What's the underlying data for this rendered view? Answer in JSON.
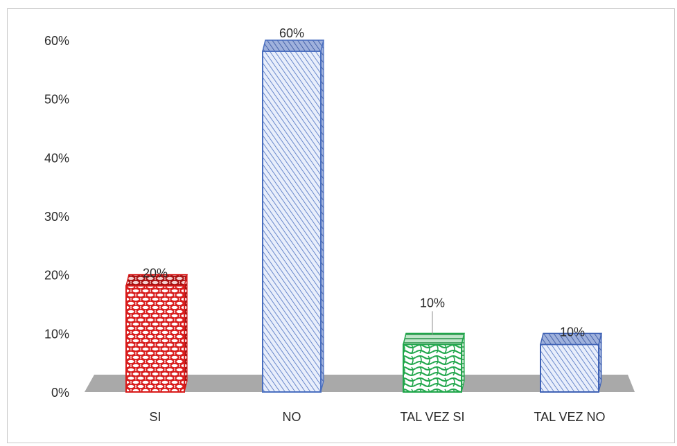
{
  "chart_data": {
    "type": "bar",
    "title": "",
    "xlabel": "",
    "ylabel": "",
    "categories": [
      "SI",
      "NO",
      "TAL VEZ SI",
      "TAL VEZ NO"
    ],
    "values": [
      20,
      60,
      10,
      10
    ],
    "data_labels": [
      "20%",
      "60%",
      "10%",
      "10%"
    ],
    "ylim": [
      0,
      60
    ],
    "yticks": [
      0,
      10,
      20,
      30,
      40,
      50,
      60
    ],
    "ytick_labels": [
      "0%",
      "10%",
      "20%",
      "30%",
      "40%",
      "50%",
      "60%"
    ],
    "grid": false,
    "legend": "none",
    "colors": {
      "SI": "#d81b1b",
      "NO": "#4a6fc0",
      "TAL VEZ SI": "#1fa64a",
      "TAL VEZ NO": "#3f62b5",
      "floor": "#a9a9a9",
      "text": "#2b2b2b"
    }
  }
}
